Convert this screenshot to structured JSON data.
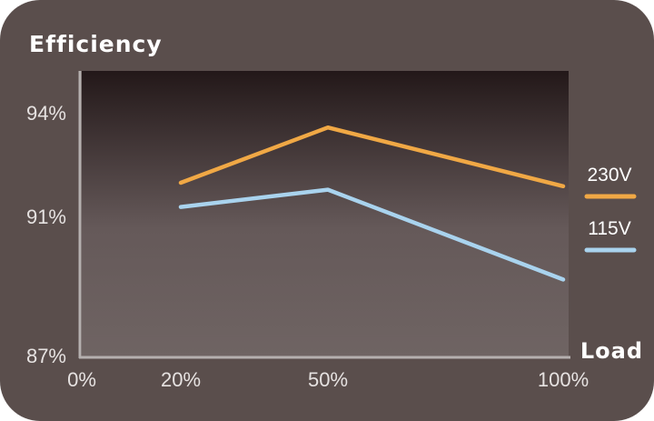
{
  "chart_data": {
    "type": "line",
    "ylabel": "Efficiency",
    "xlabel": "Load",
    "x_ticks": [
      "0%",
      "20%",
      "50%",
      "100%"
    ],
    "y_ticks": [
      "94%",
      "91%",
      "87%"
    ],
    "ylim": [
      87,
      95
    ],
    "x": [
      20,
      50,
      100
    ],
    "series": [
      {
        "name": "230V",
        "color": "#f0a845",
        "values": [
          92.0,
          93.6,
          91.9
        ]
      },
      {
        "name": "115V",
        "color": "#a9d3ee",
        "values": [
          91.3,
          91.8,
          89.2
        ]
      }
    ],
    "grid": false,
    "legend": "right"
  }
}
